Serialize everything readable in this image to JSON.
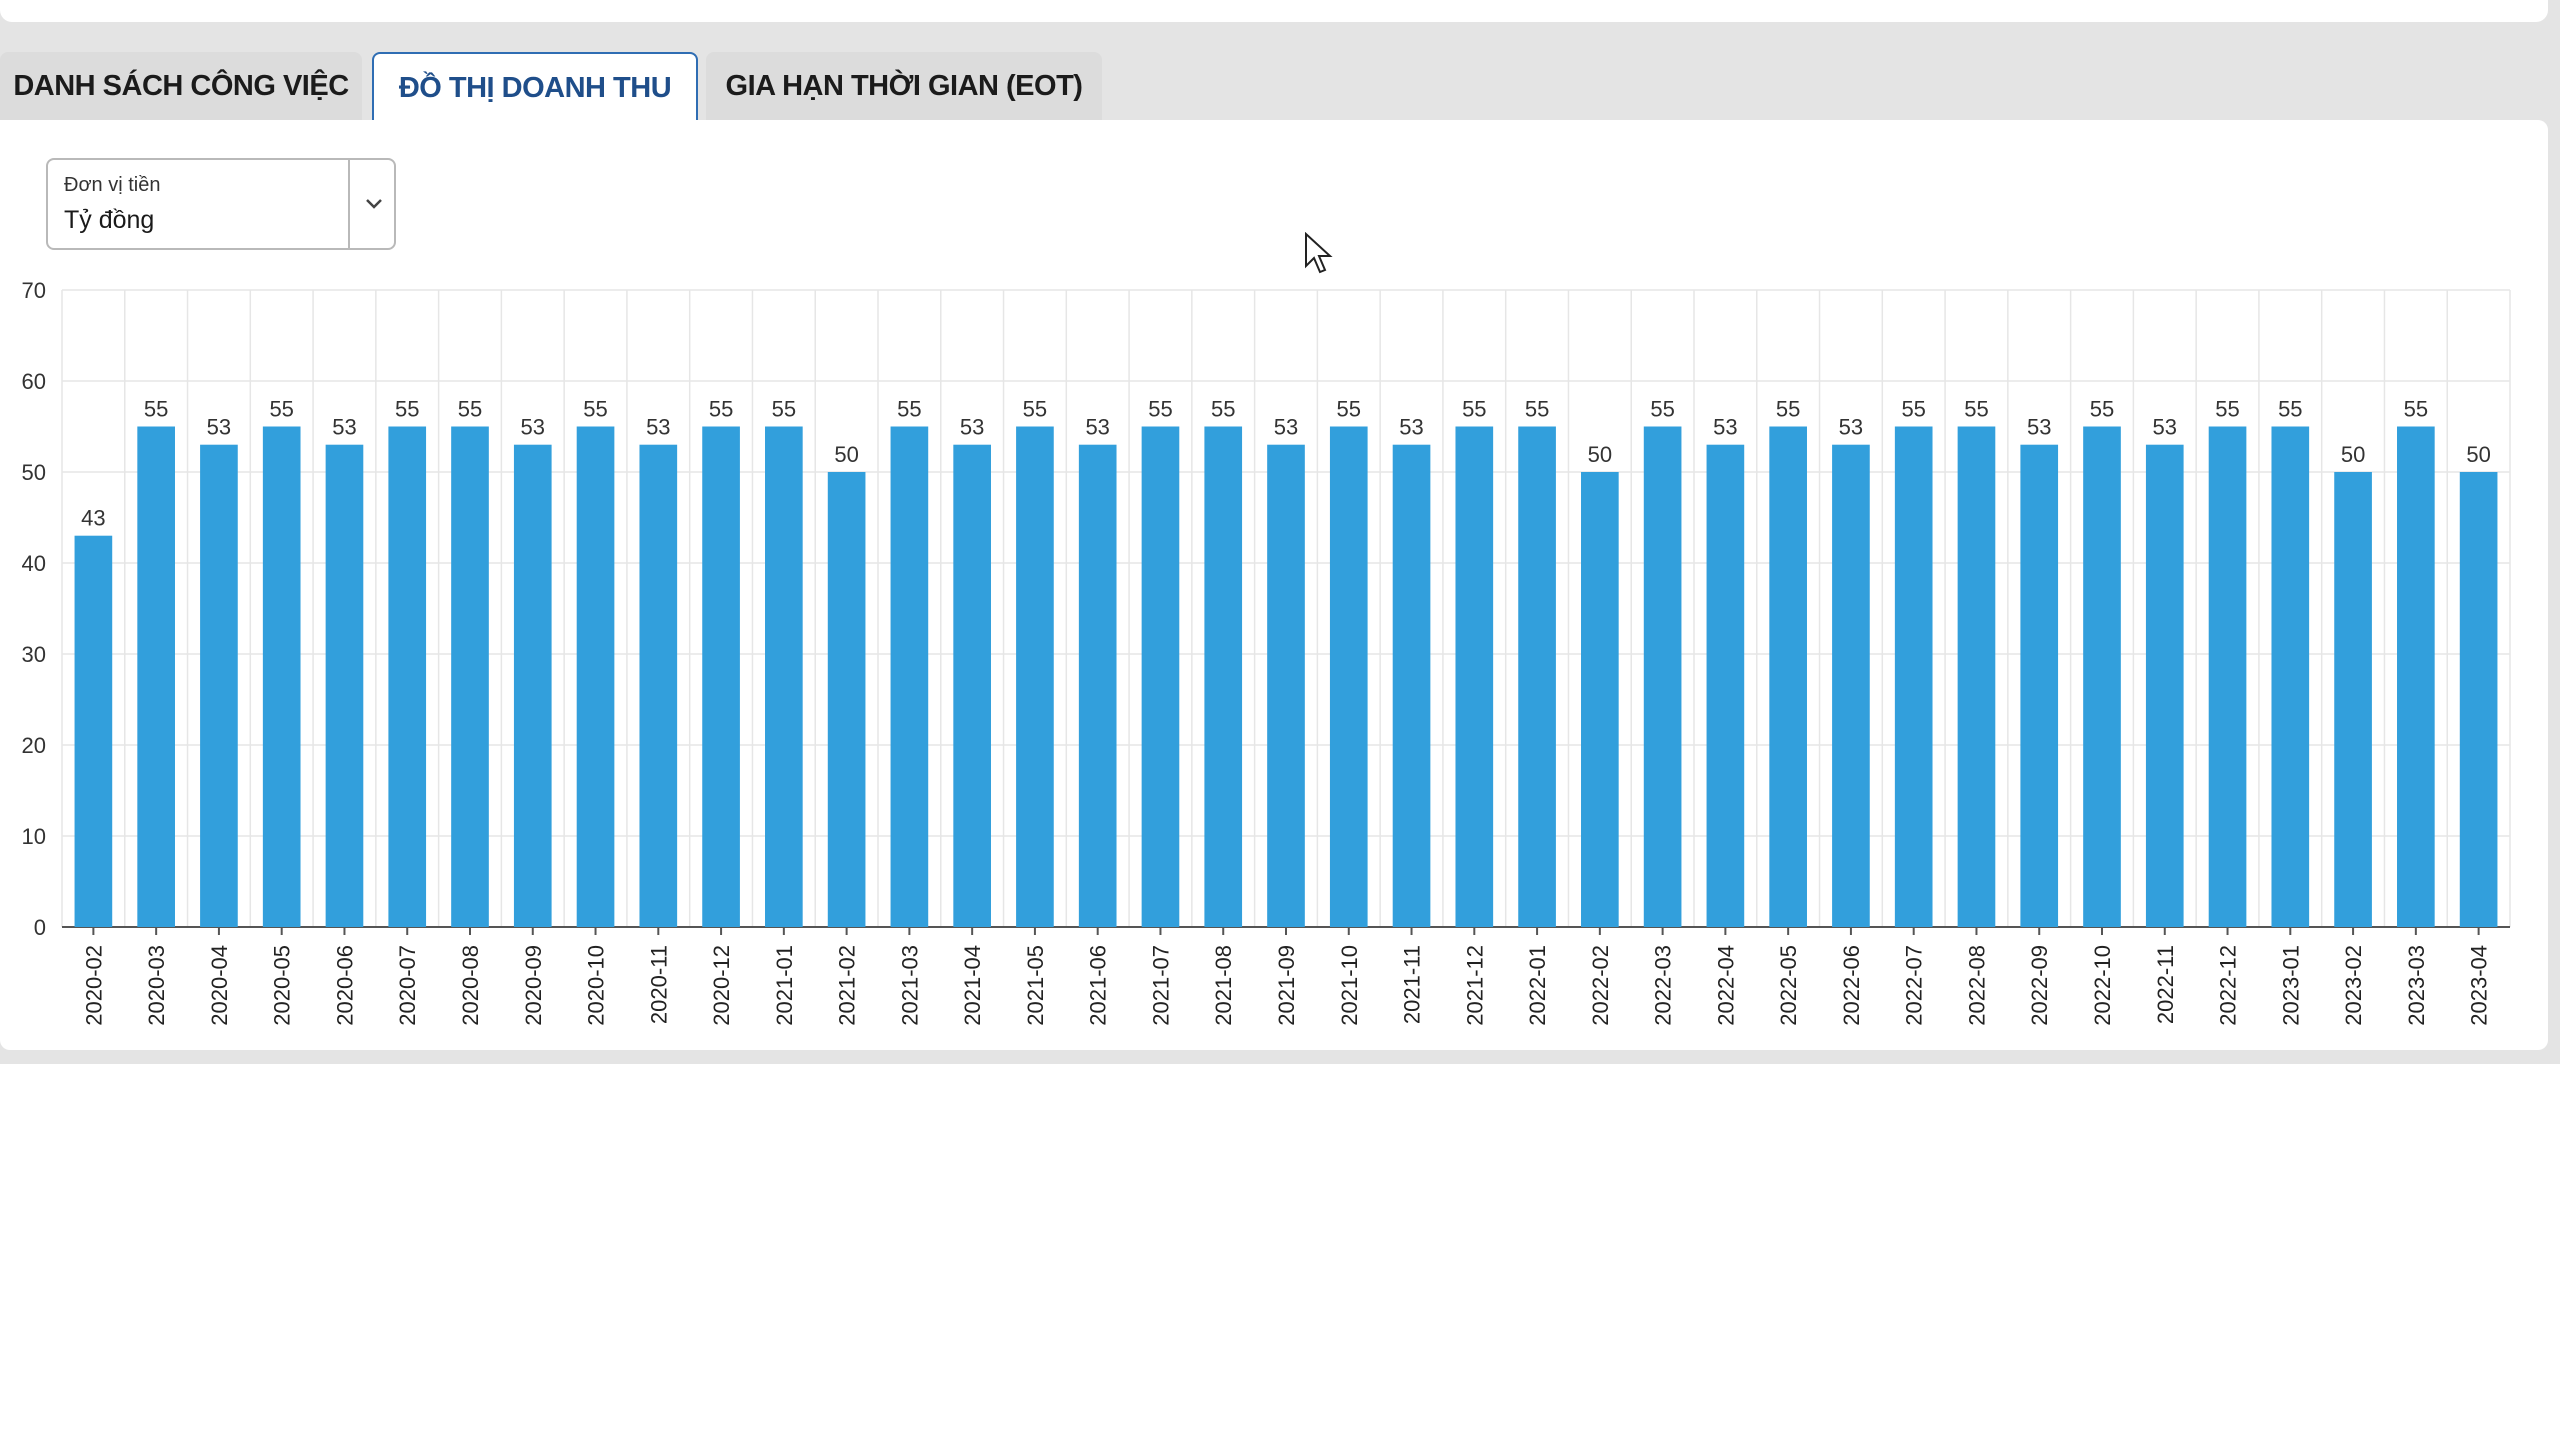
{
  "tabs": [
    {
      "label": "DANH SÁCH CÔNG VIỆC",
      "active": false
    },
    {
      "label": "ĐỒ THỊ DOANH THU",
      "active": true
    },
    {
      "label": "GIA HẠN THỜI GIAN (EOT)",
      "active": false
    }
  ],
  "currency_select": {
    "label": "Đơn vị tiền",
    "value": "Tỷ đồng",
    "icon": "chevron-down-icon"
  },
  "colors": {
    "bar": "#329fdc",
    "active_tab_text": "#1f4e8a",
    "active_tab_border": "#2f6db3",
    "background_strip": "#e4e4e4"
  },
  "chart_data": {
    "type": "bar",
    "title": "",
    "xlabel": "",
    "ylabel": "",
    "ylim": [
      0,
      70
    ],
    "yticks": [
      0,
      10,
      20,
      30,
      40,
      50,
      60,
      70
    ],
    "grid": true,
    "categories": [
      "2020-02",
      "2020-03",
      "2020-04",
      "2020-05",
      "2020-06",
      "2020-07",
      "2020-08",
      "2020-09",
      "2020-10",
      "2020-11",
      "2020-12",
      "2021-01",
      "2021-02",
      "2021-03",
      "2021-04",
      "2021-05",
      "2021-06",
      "2021-07",
      "2021-08",
      "2021-09",
      "2021-10",
      "2021-11",
      "2021-12",
      "2022-01",
      "2022-02",
      "2022-03",
      "2022-04",
      "2022-05",
      "2022-06",
      "2022-07",
      "2022-08",
      "2022-09",
      "2022-10",
      "2022-11",
      "2022-12",
      "2023-01",
      "2023-02",
      "2023-03",
      "2023-04"
    ],
    "values": [
      43,
      55,
      53,
      55,
      53,
      55,
      55,
      53,
      55,
      53,
      55,
      55,
      50,
      55,
      53,
      55,
      53,
      55,
      55,
      53,
      55,
      53,
      55,
      55,
      50,
      55,
      53,
      55,
      53,
      55,
      55,
      53,
      55,
      53,
      55,
      55,
      50,
      55,
      50
    ]
  }
}
